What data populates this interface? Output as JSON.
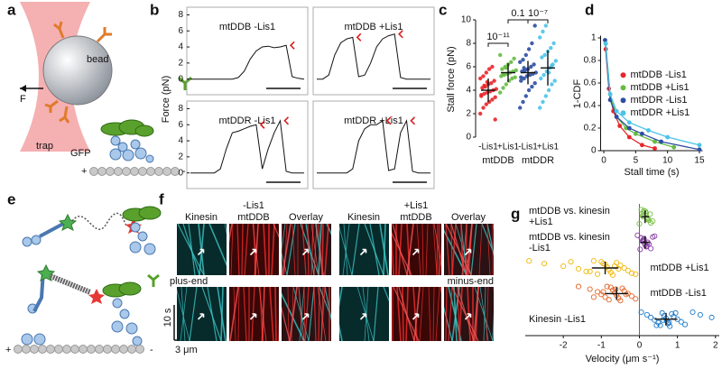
{
  "panel_labels": [
    "a",
    "b",
    "c",
    "d",
    "e",
    "f",
    "g"
  ],
  "diagram_a": {
    "bead": "bead",
    "force": "F",
    "trap": "trap",
    "gfp": "GFP",
    "plus": "+",
    "minus": "-"
  },
  "diagram_e": {
    "plus": "+",
    "minus": "-"
  },
  "kymographs": {
    "conditions": [
      "-Lis1",
      "+Lis1"
    ],
    "channels": [
      "Kinesin",
      "mtDDB",
      "Overlay"
    ],
    "plus_end": "plus-end",
    "minus_end": "minus-end",
    "time_scale": "10 s",
    "length_scale": "3 μm"
  },
  "chart_data": [
    {
      "type": "line",
      "ylabel": "Force (pN)",
      "ylim": [
        -1.5,
        8.5
      ],
      "yticks": [
        0,
        2,
        4,
        6,
        8
      ],
      "series": [
        {
          "name": "mtDDB -Lis1",
          "color": "#111111",
          "values": [
            0,
            0,
            0,
            0,
            0,
            0,
            0,
            0,
            0.2,
            1,
            2.5,
            3.5,
            4,
            4.1,
            3.9,
            4,
            4.2,
            0.3,
            0.1,
            0
          ]
        },
        {
          "name": "mtDDB +Lis1",
          "color": "#111111",
          "values": [
            0,
            0,
            0.5,
            3,
            4.5,
            5,
            5.2,
            0.3,
            0.5,
            2,
            4,
            5,
            5.4,
            5.6,
            0.2,
            0,
            0,
            0,
            0,
            0
          ]
        },
        {
          "name": "mtDDR -Lis1",
          "color": "#111111",
          "values": [
            0,
            0,
            0,
            0,
            0,
            0.5,
            3,
            5,
            5.2,
            5.5,
            5.8,
            6,
            0.5,
            3,
            5,
            6.5,
            0.2,
            0,
            0,
            0
          ]
        },
        {
          "name": "mtDDR +Lis1",
          "color": "#111111",
          "values": [
            0,
            0,
            0,
            0,
            0,
            0,
            0.5,
            4,
            5.5,
            6,
            6,
            6.5,
            0.3,
            0.5,
            5,
            6.5,
            0.2,
            0,
            0,
            0
          ]
        }
      ]
    },
    {
      "type": "strip",
      "ylabel": "Stall force (pN)",
      "ylim": [
        0,
        10
      ],
      "yticks": [
        0,
        2,
        4,
        6,
        8,
        10
      ],
      "categories": [
        "-Lis1",
        "+Lis1",
        "-Lis1",
        "+Lis1"
      ],
      "groups": [
        "mtDDB",
        "mtDDR"
      ],
      "annotations": [
        "10⁻¹¹",
        "0.1",
        "10⁻⁷"
      ],
      "series": [
        {
          "color": "#e8262a",
          "mean": 4.0,
          "sd": 1.0,
          "values": [
            2,
            2.5,
            2.8,
            3,
            3.2,
            3.4,
            3.5,
            3.7,
            3.8,
            3.9,
            4,
            4.1,
            4.2,
            4.3,
            4.5,
            4.6,
            4.8,
            5,
            5.2,
            5.5,
            5.8,
            6,
            1.5,
            3.6,
            4.4,
            4.7
          ]
        },
        {
          "color": "#66bb44",
          "mean": 5.5,
          "sd": 0.8,
          "values": [
            3.8,
            4.2,
            4.5,
            4.8,
            5,
            5.1,
            5.2,
            5.3,
            5.4,
            5.5,
            5.6,
            5.7,
            5.8,
            6,
            6.2,
            6.4,
            6.7,
            7,
            5.35,
            5.9
          ]
        },
        {
          "color": "#2c4ea0",
          "mean": 5.5,
          "sd": 1.0,
          "values": [
            2.5,
            3,
            3.5,
            4,
            4.3,
            4.6,
            4.8,
            5,
            5.2,
            5.3,
            5.4,
            5.5,
            5.6,
            5.7,
            5.8,
            6,
            6.2,
            6.4,
            6.6,
            7,
            7.5,
            8,
            9.5,
            5.1,
            5.9
          ]
        },
        {
          "color": "#4cc3e8",
          "mean": 5.9,
          "sd": 1.5,
          "values": [
            2.5,
            3,
            3.5,
            4,
            4.5,
            4.8,
            5,
            5.3,
            5.6,
            5.9,
            6.2,
            6.5,
            6.8,
            7,
            7.3,
            7.6,
            8,
            8.5,
            9,
            9.5,
            5.5,
            6.1
          ]
        }
      ]
    },
    {
      "type": "line",
      "xlabel": "Stall time (s)",
      "ylabel": "1-CDF",
      "xlim": [
        -0.5,
        15.5
      ],
      "ylim": [
        0,
        1.02
      ],
      "xticks": [
        0,
        5,
        10,
        15
      ],
      "yticks": [
        0,
        0.2,
        0.4,
        0.6,
        0.8,
        1
      ],
      "markers": true,
      "legend": "right",
      "series": [
        {
          "name": "mtDDB -Lis1",
          "color": "#e8262a",
          "x": [
            0.3,
            0.8,
            1.5,
            2.5,
            4,
            6,
            8
          ],
          "values": [
            0.9,
            0.55,
            0.35,
            0.22,
            0.12,
            0.05,
            0.02
          ]
        },
        {
          "name": "mtDDB +Lis1",
          "color": "#66bb44",
          "x": [
            0.3,
            1,
            2,
            3.5,
            5,
            8,
            11
          ],
          "values": [
            0.95,
            0.5,
            0.3,
            0.2,
            0.15,
            0.08,
            0.03
          ]
        },
        {
          "name": "mtDDR -Lis1",
          "color": "#2c4ea0",
          "x": [
            0.2,
            1,
            2,
            4,
            6,
            9,
            15
          ],
          "values": [
            0.98,
            0.45,
            0.3,
            0.2,
            0.15,
            0.08,
            0.01
          ]
        },
        {
          "name": "mtDDR +Lis1",
          "color": "#4cc3e8",
          "x": [
            0.3,
            1,
            2,
            4,
            7,
            10,
            15
          ],
          "values": [
            0.95,
            0.5,
            0.35,
            0.25,
            0.18,
            0.12,
            0.05
          ]
        }
      ]
    },
    {
      "type": "strip",
      "xlabel": "Velocity (μm s⁻¹)",
      "xlim": [
        -3,
        2.1
      ],
      "xticks": [
        -2,
        -1,
        0,
        1,
        2
      ],
      "hollow": true,
      "series": [
        {
          "name": "mtDDB vs. kinesin +Lis1",
          "color": "#7ac143",
          "mean": 0.15,
          "sd": 0.1,
          "values": [
            0.05,
            0.1,
            0.15,
            0.2,
            0.25,
            0.3,
            0.12,
            0.18,
            0.08,
            0.22,
            0.35,
            0.0,
            0.16,
            0.28,
            0.1,
            0.2
          ]
        },
        {
          "name": "mtDDB vs. kinesin -Lis1",
          "color": "#8b3fa8",
          "mean": 0.15,
          "sd": 0.12,
          "values": [
            -0.05,
            0.05,
            0.1,
            0.15,
            0.2,
            0.3,
            0.4,
            0.12,
            0.08,
            0.25,
            0.18,
            0.02,
            0.35,
            0.1,
            0.22,
            0.15
          ]
        },
        {
          "name": "mtDDB +Lis1",
          "color": "#f2b705",
          "mean": -0.9,
          "sd": 0.35,
          "values": [
            -2.9,
            -2.5,
            -2.0,
            -1.6,
            -1.3,
            -1.1,
            -1.0,
            -0.9,
            -0.85,
            -0.8,
            -0.75,
            -0.7,
            -0.6,
            -0.5,
            -0.4,
            -0.3,
            -0.2,
            -1.2,
            -0.95,
            -0.65,
            -0.55,
            -1.4,
            -0.1,
            -1.8
          ]
        },
        {
          "name": "mtDDB -Lis1",
          "color": "#e0662a",
          "mean": -0.6,
          "sd": 0.3,
          "values": [
            -1.6,
            -1.3,
            -1.1,
            -1.0,
            -0.9,
            -0.8,
            -0.75,
            -0.7,
            -0.65,
            -0.6,
            -0.55,
            -0.5,
            -0.45,
            -0.4,
            -0.3,
            -0.2,
            -0.1,
            -0.85,
            -0.62,
            -0.95,
            -0.35,
            -1.2
          ]
        },
        {
          "name": "Kinesin -Lis1",
          "color": "#1f7bc8",
          "mean": 0.7,
          "sd": 0.3,
          "values": [
            0.05,
            0.2,
            0.3,
            0.4,
            0.5,
            0.55,
            0.6,
            0.65,
            0.7,
            0.72,
            0.75,
            0.8,
            0.85,
            0.9,
            1.0,
            1.1,
            1.2,
            1.4,
            1.6,
            1.9,
            0.62,
            0.78,
            0.45,
            0.95
          ]
        }
      ]
    }
  ]
}
